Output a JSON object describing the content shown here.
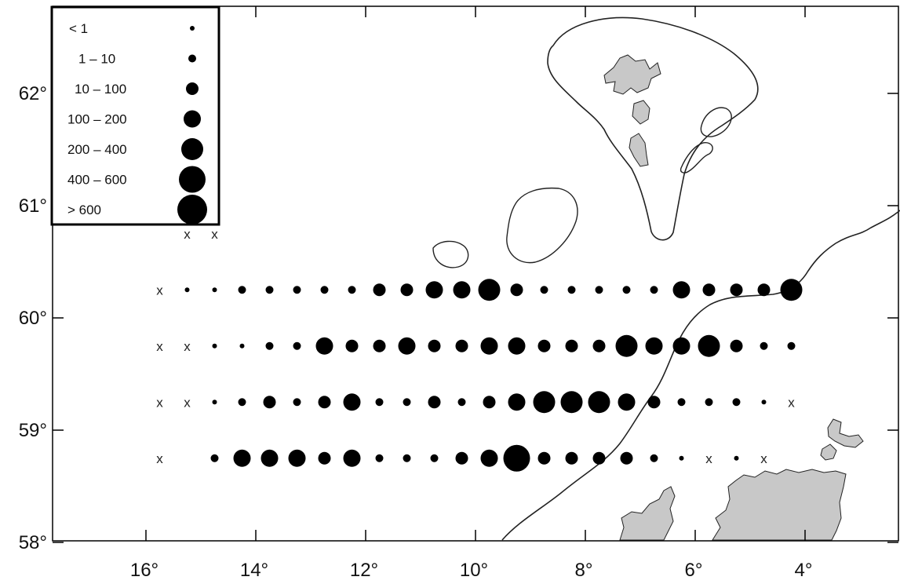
{
  "map": {
    "x_axis": {
      "ticks": [
        {
          "value": 16,
          "label": "16°"
        },
        {
          "value": 14,
          "label": "14°"
        },
        {
          "value": 12,
          "label": "12°"
        },
        {
          "value": 10,
          "label": "10°"
        },
        {
          "value": 8,
          "label": "8°"
        },
        {
          "value": 6,
          "label": "6°"
        },
        {
          "value": 4,
          "label": "4°"
        }
      ]
    },
    "y_axis": {
      "ticks": [
        {
          "value": 62,
          "label": "62°"
        },
        {
          "value": 61,
          "label": "61°"
        },
        {
          "value": 60,
          "label": "60°"
        },
        {
          "value": 59,
          "label": "59°"
        },
        {
          "value": 58,
          "label": "58°"
        }
      ]
    },
    "legend": {
      "placement": "top-left",
      "classes": [
        {
          "label": "< 1",
          "level": 1
        },
        {
          "label": "1 – 10",
          "level": 2
        },
        {
          "label": "10 – 100",
          "level": 3
        },
        {
          "label": "100 – 200",
          "level": 4
        },
        {
          "label": "200 – 400",
          "level": 5
        },
        {
          "label": "400 – 600",
          "level": 6
        },
        {
          "label": "> 600",
          "level": 7
        }
      ]
    },
    "colors": {
      "land": "#c8c8c8",
      "coast": "#222222",
      "marker": "#000000",
      "frame": "#000000"
    },
    "zero_symbol": "x",
    "stations": [
      {
        "lat": 60.75,
        "lons": [
          15.25,
          14.75
        ],
        "levels": [
          0,
          0
        ]
      },
      {
        "lat": 60.25,
        "lons": [
          15.75,
          15.25,
          14.75,
          14.25,
          13.75,
          13.25,
          12.75,
          12.25,
          11.75,
          11.25,
          10.75,
          10.25,
          9.75,
          9.25,
          8.75,
          8.25,
          7.75,
          7.25,
          6.75,
          6.25,
          5.75,
          5.25,
          4.75,
          4.25
        ],
        "levels": [
          0,
          1,
          1,
          2,
          2,
          2,
          2,
          2,
          3,
          3,
          4,
          4,
          5,
          3,
          2,
          2,
          2,
          2,
          2,
          4,
          3,
          3,
          3,
          5
        ]
      },
      {
        "lat": 59.75,
        "lons": [
          15.75,
          15.25,
          14.75,
          14.25,
          13.75,
          13.25,
          12.75,
          12.25,
          11.75,
          11.25,
          10.75,
          10.25,
          9.75,
          9.25,
          8.75,
          8.25,
          7.75,
          7.25,
          6.75,
          6.25,
          5.75,
          5.25,
          4.75,
          4.25
        ],
        "levels": [
          0,
          0,
          1,
          1,
          2,
          2,
          4,
          3,
          3,
          4,
          3,
          3,
          4,
          4,
          3,
          3,
          3,
          5,
          4,
          4,
          5,
          3,
          2,
          2
        ]
      },
      {
        "lat": 59.25,
        "lons": [
          15.75,
          15.25,
          14.75,
          14.25,
          13.75,
          13.25,
          12.75,
          12.25,
          11.75,
          11.25,
          10.75,
          10.25,
          9.75,
          9.25,
          8.75,
          8.25,
          7.75,
          7.25,
          6.75,
          6.25,
          5.75,
          5.25,
          4.75,
          4.25
        ],
        "levels": [
          0,
          0,
          1,
          2,
          3,
          2,
          3,
          4,
          2,
          2,
          3,
          2,
          3,
          4,
          5,
          5,
          5,
          4,
          3,
          2,
          2,
          2,
          1,
          0
        ]
      },
      {
        "lat": 58.75,
        "lons": [
          15.75,
          14.75,
          14.25,
          13.75,
          13.25,
          12.75,
          12.25,
          11.75,
          11.25,
          10.75,
          10.25,
          9.75,
          9.25,
          8.75,
          8.25,
          7.75,
          7.25,
          6.75,
          6.25,
          5.75,
          5.25,
          4.75
        ],
        "levels": [
          0,
          2,
          4,
          4,
          4,
          3,
          4,
          2,
          2,
          2,
          3,
          4,
          6,
          3,
          3,
          3,
          3,
          2,
          1,
          0,
          1,
          0
        ]
      }
    ]
  }
}
